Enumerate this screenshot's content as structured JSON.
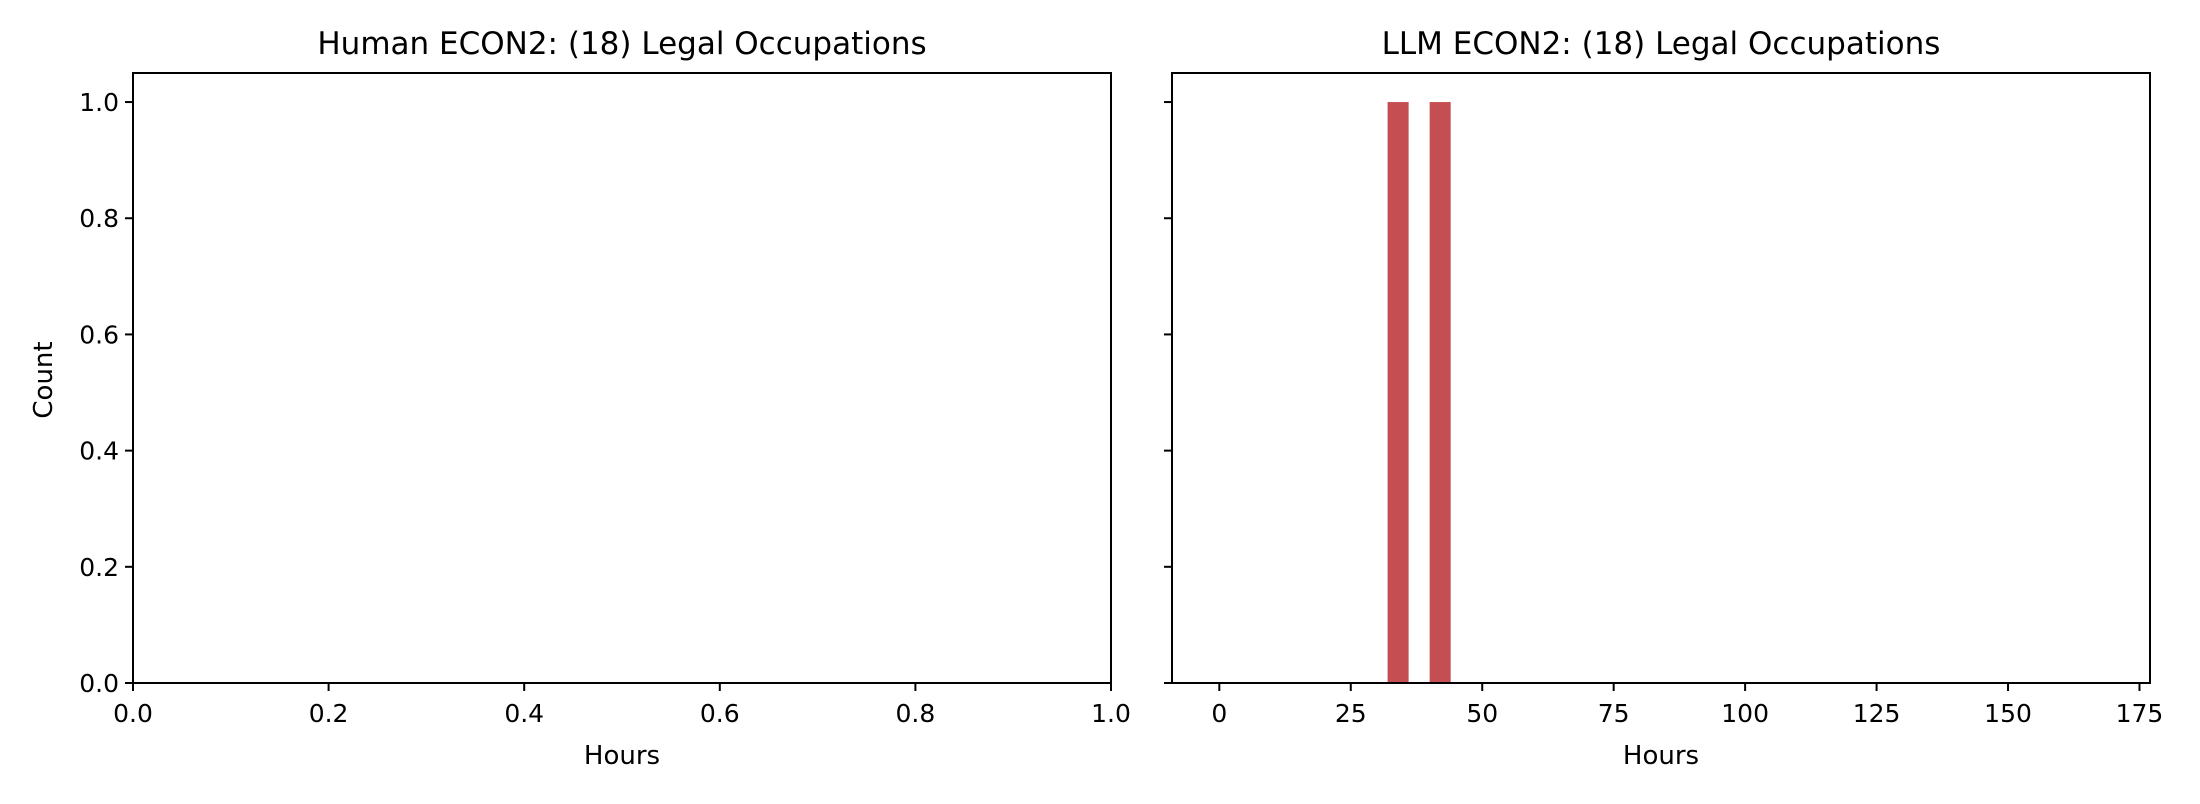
{
  "chart_data": [
    {
      "type": "bar",
      "title": "Human ECON2: (18) Legal Occupations",
      "xlabel": "Hours",
      "ylabel": "Count",
      "xlim": [
        0.0,
        1.0
      ],
      "ylim": [
        0.0,
        1.05
      ],
      "xticks": [
        "0.0",
        "0.2",
        "0.4",
        "0.6",
        "0.8",
        "1.0"
      ],
      "yticks": [
        "0.0",
        "0.2",
        "0.4",
        "0.6",
        "0.8",
        "1.0"
      ],
      "bins": [],
      "grid": false
    },
    {
      "type": "bar",
      "title": "LLM ECON2: (18) Legal Occupations",
      "xlabel": "Hours",
      "ylabel": "",
      "xlim": [
        -9,
        177
      ],
      "ylim": [
        0.0,
        1.05
      ],
      "xticks": [
        "0",
        "25",
        "50",
        "75",
        "100",
        "125",
        "150",
        "175"
      ],
      "bins": [
        {
          "x0": 32,
          "x1": 36,
          "count": 1
        },
        {
          "x0": 40,
          "x1": 44,
          "count": 1
        }
      ],
      "bar_color": "#c44e52",
      "grid": false
    }
  ]
}
